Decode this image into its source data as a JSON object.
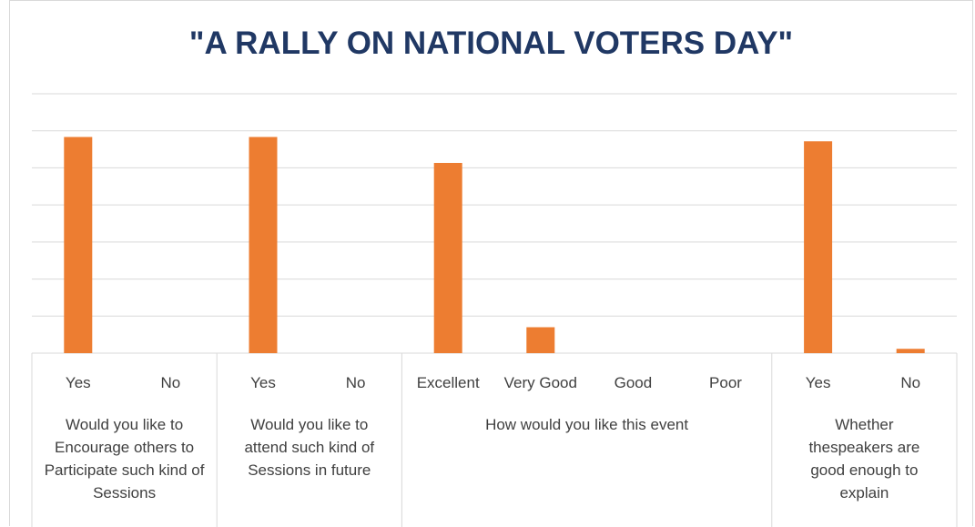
{
  "chart_data": {
    "type": "bar",
    "title": "\"A RALLY ON NATIONAL VOTERS DAY\"",
    "xlabel": "",
    "ylabel": "",
    "ylim": [
      0,
      120
    ],
    "grid": true,
    "groups": [
      {
        "label": [
          "Would you like to",
          "Encourage others to",
          "Participate such kind of",
          "Sessions"
        ],
        "categories": [
          "Yes",
          "No"
        ],
        "values": [
          100,
          0
        ]
      },
      {
        "label": [
          "Would you like to",
          "attend such kind of",
          "Sessions in future"
        ],
        "categories": [
          "Yes",
          "No"
        ],
        "values": [
          100,
          0
        ]
      },
      {
        "label": [
          "How would you like this event"
        ],
        "categories": [
          "Excellent",
          "Very Good",
          "Good",
          "Poor"
        ],
        "values": [
          88,
          12,
          0,
          0
        ]
      },
      {
        "label": [
          "Whether",
          "thespeakers are",
          "good enough to",
          "explain"
        ],
        "categories": [
          "Yes",
          "No"
        ],
        "values": [
          98,
          2
        ]
      }
    ],
    "colors": {
      "bar": "#ed7d31",
      "grid": "#d9d9d9",
      "title": "#203864",
      "text": "#404040"
    }
  }
}
